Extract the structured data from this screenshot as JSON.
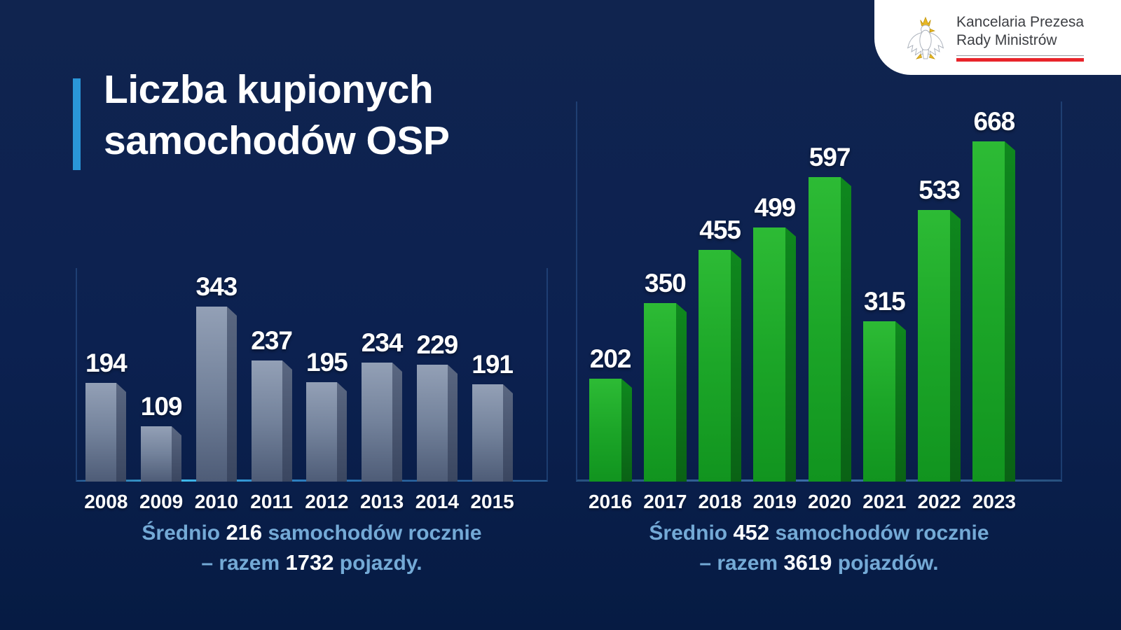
{
  "page": {
    "background": "#0c2150",
    "accent_color": "#2a96d8"
  },
  "header": {
    "title_line1": "Liczba kupionych",
    "title_line2": "samochodów OSP"
  },
  "logo": {
    "line1": "Kancelaria Prezesa",
    "line2": "Rady Ministrów",
    "eagle_icon": "polish-eagle-emblem",
    "red_bar_color": "#e8242a"
  },
  "chart_data": [
    {
      "type": "bar",
      "categories": [
        "2008",
        "2009",
        "2010",
        "2011",
        "2012",
        "2013",
        "2014",
        "2015"
      ],
      "values": [
        194,
        109,
        343,
        237,
        195,
        234,
        229,
        191
      ],
      "value_labels_shown": true,
      "grid": false,
      "front_gradient": [
        "#93a0b6",
        "#73829b",
        "#4e5c77"
      ],
      "side_gradient": [
        "#5a6781",
        "#3a4660"
      ],
      "caption": {
        "seg1": "Średnio ",
        "avg": "216",
        "seg2": " samochodów rocznie",
        "seg3": "– razem ",
        "total": "1732",
        "seg4": " pojazdy."
      }
    },
    {
      "type": "bar",
      "categories": [
        "2016",
        "2017",
        "2018",
        "2019",
        "2020",
        "2021",
        "2022",
        "2023"
      ],
      "values": [
        202,
        350,
        455,
        499,
        597,
        315,
        533,
        668
      ],
      "value_labels_shown": true,
      "grid": false,
      "front_gradient": [
        "#2dbb35",
        "#1ca628",
        "#11941f"
      ],
      "side_gradient": [
        "#0f881e",
        "#0a6215"
      ],
      "caption": {
        "seg1": "Średnio ",
        "avg": "452",
        "seg2": " samochodów rocznie",
        "seg3": "– razem ",
        "total": "3619",
        "seg4": " pojazdów."
      }
    }
  ]
}
